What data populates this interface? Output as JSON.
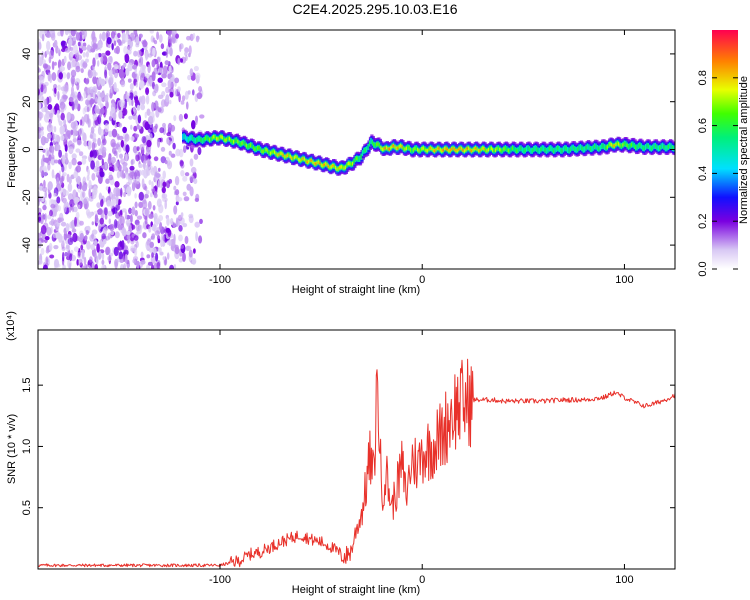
{
  "title": "C2E4.2025.295.10.03.E16",
  "chart_data": [
    {
      "type": "heatmap",
      "name": "spectrogram",
      "xlabel": "Height of straight line (km)",
      "ylabel": "Frequency (Hz)",
      "xlim": [
        -190,
        125
      ],
      "ylim": [
        -50,
        50
      ],
      "xticks": [
        -100,
        0,
        100
      ],
      "xtick_labels": [
        "-100",
        "0",
        "100"
      ],
      "yticks": [
        -40,
        -20,
        0,
        20,
        40
      ],
      "ytick_labels": [
        "-40",
        "-20",
        "0",
        "20",
        "40"
      ],
      "noise_region_x": [
        -190,
        -112
      ],
      "ridge": {
        "x": [
          -118,
          -110,
          -100,
          -90,
          -80,
          -70,
          -60,
          -50,
          -40,
          -35,
          -30,
          -25,
          -22,
          -18,
          -15,
          -10,
          -5,
          0,
          10,
          20,
          30,
          50,
          70,
          90,
          95,
          100,
          110,
          125
        ],
        "freq": [
          5,
          4,
          5,
          3,
          0,
          -2,
          -4,
          -6,
          -8,
          -6,
          -3,
          3,
          2,
          0,
          1,
          1,
          0,
          0,
          0,
          0,
          0,
          0,
          0,
          1,
          2,
          2,
          1,
          1
        ],
        "amp": [
          0.5,
          0.6,
          0.8,
          0.7,
          0.7,
          0.85,
          0.85,
          0.9,
          0.85,
          0.8,
          0.6,
          0.6,
          0.7,
          0.9,
          0.9,
          0.85,
          0.7,
          0.8,
          0.9,
          0.9,
          0.85,
          0.6,
          0.6,
          0.6,
          0.9,
          0.7,
          0.6,
          0.6
        ]
      },
      "colorbar": {
        "label": "Normalized spectral amplitude",
        "range": [
          0,
          1
        ],
        "ticks": [
          0.0,
          0.2,
          0.4,
          0.6,
          0.8
        ],
        "tick_labels": [
          "0.0",
          "0.2",
          "0.4",
          "0.6",
          "0.8"
        ]
      }
    },
    {
      "type": "line",
      "name": "snr",
      "xlabel": "Height of straight line (km)",
      "ylabel": "SNR (10 * v/v)",
      "exponent_label": "(x10⁴)",
      "xlim": [
        -190,
        125
      ],
      "ylim": [
        0,
        1.95
      ],
      "xticks": [
        -100,
        0,
        100
      ],
      "xtick_labels": [
        "-100",
        "0",
        "100"
      ],
      "yticks": [
        0.5,
        1.0,
        1.5
      ],
      "ytick_labels": [
        "0.5",
        "1.0",
        "1.5"
      ],
      "series_color": "#e8312a",
      "series": [
        {
          "name": "SNR",
          "x": [
            -190,
            -140,
            -100,
            -90,
            -85,
            -80,
            -75,
            -70,
            -65,
            -60,
            -55,
            -50,
            -45,
            -40,
            -38,
            -35,
            -33,
            -30,
            -28,
            -26,
            -24,
            -23,
            -22,
            -21,
            -20,
            -18,
            -15,
            -12,
            -10,
            -8,
            -5,
            -2,
            0,
            5,
            10,
            15,
            20,
            25,
            30,
            35,
            40,
            50,
            60,
            70,
            80,
            90,
            95,
            100,
            105,
            110,
            115,
            120,
            125
          ],
          "y": [
            0.03,
            0.03,
            0.03,
            0.07,
            0.12,
            0.14,
            0.18,
            0.22,
            0.25,
            0.28,
            0.24,
            0.22,
            0.18,
            0.12,
            0.1,
            0.15,
            0.3,
            0.45,
            0.65,
            0.9,
            0.75,
            1.2,
            1.6,
            1.0,
            0.6,
            0.8,
            0.5,
            0.7,
            0.85,
            0.6,
            0.9,
            0.85,
            0.95,
            1.0,
            1.1,
            1.3,
            1.35,
            1.38,
            1.38,
            1.38,
            1.37,
            1.37,
            1.37,
            1.38,
            1.38,
            1.4,
            1.44,
            1.4,
            1.36,
            1.33,
            1.35,
            1.38,
            1.42
          ]
        }
      ]
    }
  ]
}
